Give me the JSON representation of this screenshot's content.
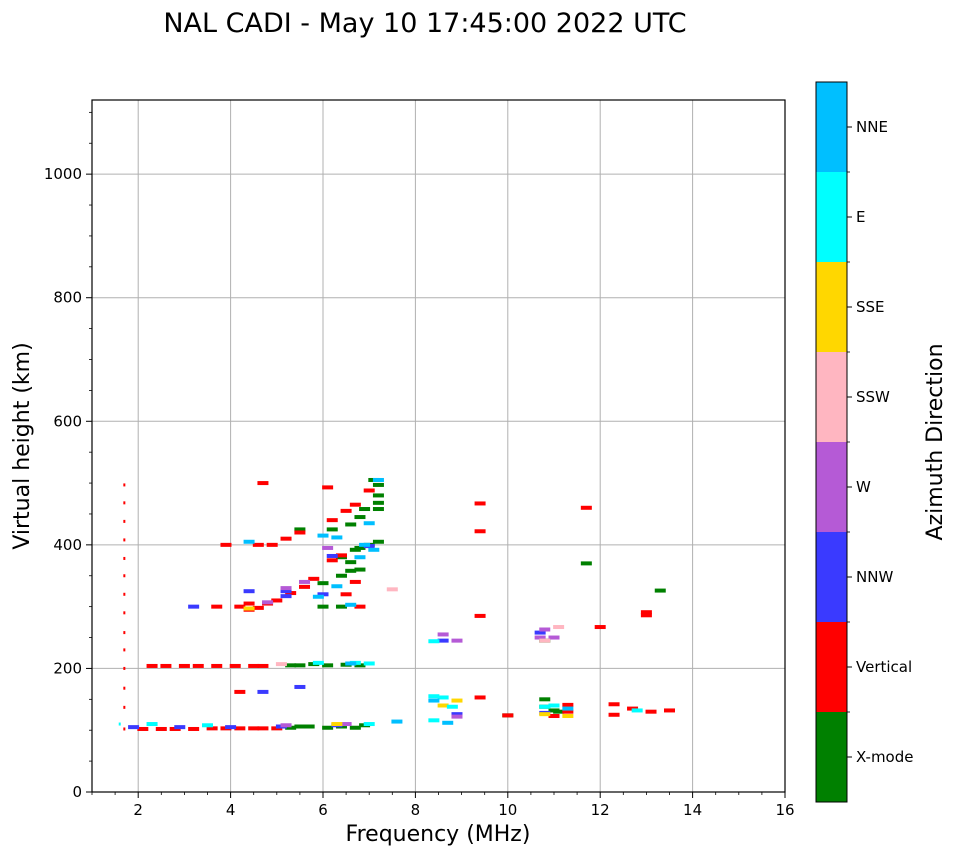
{
  "chart_data": {
    "type": "scatter",
    "title": "NAL CADI - May 10 17:45:00 2022 UTC",
    "xlabel": "Frequency (MHz)",
    "ylabel": "Virtual height (km)",
    "xlim": [
      1,
      16
    ],
    "ylim": [
      0,
      1120
    ],
    "xticks": [
      2,
      4,
      6,
      8,
      10,
      12,
      14,
      16
    ],
    "yticks": [
      0,
      200,
      400,
      600,
      800,
      1000
    ],
    "grid": true,
    "colorbar": {
      "title": "Azimuth Direction",
      "categories": [
        {
          "name": "X-mode",
          "color": "#008000"
        },
        {
          "name": "Vertical",
          "color": "#ff0000"
        },
        {
          "name": "NNW",
          "color": "#3a3aff"
        },
        {
          "name": "W",
          "color": "#b55ad6"
        },
        {
          "name": "SSW",
          "color": "#ffb6c1"
        },
        {
          "name": "SSE",
          "color": "#ffd700"
        },
        {
          "name": "E",
          "color": "#00ffff"
        },
        {
          "name": "NNE",
          "color": "#00bfff"
        }
      ]
    },
    "series": [
      {
        "name": "X-mode",
        "points": [
          [
            5.3,
            104
          ],
          [
            5.5,
            106
          ],
          [
            5.7,
            106
          ],
          [
            6.1,
            104
          ],
          [
            6.4,
            106
          ],
          [
            6.7,
            104
          ],
          [
            6.9,
            108
          ],
          [
            5.3,
            205
          ],
          [
            5.5,
            205
          ],
          [
            5.8,
            207
          ],
          [
            6.1,
            205
          ],
          [
            6.5,
            206
          ],
          [
            6.8,
            205
          ],
          [
            6.0,
            300
          ],
          [
            6.4,
            300
          ],
          [
            6.0,
            338
          ],
          [
            6.4,
            350
          ],
          [
            6.6,
            358
          ],
          [
            6.8,
            360
          ],
          [
            6.6,
            372
          ],
          [
            6.4,
            380
          ],
          [
            6.7,
            392
          ],
          [
            6.8,
            395
          ],
          [
            7.0,
            400
          ],
          [
            7.2,
            405
          ],
          [
            6.2,
            425
          ],
          [
            6.6,
            433
          ],
          [
            6.8,
            445
          ],
          [
            6.9,
            458
          ],
          [
            7.2,
            458
          ],
          [
            7.2,
            468
          ],
          [
            7.2,
            480
          ],
          [
            7.2,
            497
          ],
          [
            7.1,
            505
          ],
          [
            5.5,
            425
          ],
          [
            10.8,
            150
          ],
          [
            10.8,
            138
          ],
          [
            11.0,
            132
          ],
          [
            11.1,
            130
          ],
          [
            10.8,
            245
          ],
          [
            11.7,
            370
          ],
          [
            13.3,
            326
          ],
          [
            10.0,
            124
          ]
        ]
      },
      {
        "name": "Vertical",
        "points": [
          [
            1.7,
            102
          ],
          [
            2.1,
            102
          ],
          [
            2.5,
            102
          ],
          [
            2.8,
            102
          ],
          [
            3.2,
            102
          ],
          [
            3.6,
            103
          ],
          [
            3.9,
            103
          ],
          [
            4.2,
            103
          ],
          [
            4.5,
            103
          ],
          [
            4.7,
            103
          ],
          [
            5.0,
            103
          ],
          [
            2.3,
            204
          ],
          [
            2.6,
            204
          ],
          [
            3.0,
            204
          ],
          [
            3.3,
            204
          ],
          [
            3.7,
            204
          ],
          [
            4.1,
            204
          ],
          [
            4.5,
            204
          ],
          [
            4.7,
            204
          ],
          [
            3.7,
            300
          ],
          [
            4.2,
            300
          ],
          [
            4.4,
            295
          ],
          [
            4.6,
            298
          ],
          [
            4.8,
            305
          ],
          [
            5.0,
            310
          ],
          [
            5.3,
            322
          ],
          [
            5.6,
            332
          ],
          [
            5.8,
            345
          ],
          [
            6.2,
            375
          ],
          [
            6.4,
            383
          ],
          [
            6.7,
            340
          ],
          [
            6.5,
            320
          ],
          [
            6.8,
            300
          ],
          [
            3.9,
            400
          ],
          [
            4.6,
            400
          ],
          [
            4.9,
            400
          ],
          [
            5.2,
            410
          ],
          [
            5.5,
            420
          ],
          [
            6.2,
            440
          ],
          [
            6.5,
            455
          ],
          [
            6.7,
            465
          ],
          [
            7.0,
            488
          ],
          [
            6.1,
            493
          ],
          [
            4.7,
            500
          ],
          [
            4.4,
            305
          ],
          [
            9.4,
            467
          ],
          [
            9.4,
            422
          ],
          [
            9.4,
            285
          ],
          [
            9.4,
            153
          ],
          [
            10.0,
            124
          ],
          [
            11.0,
            123
          ],
          [
            11.3,
            141
          ],
          [
            11.3,
            130
          ],
          [
            12.3,
            142
          ],
          [
            12.3,
            125
          ],
          [
            12.7,
            135
          ],
          [
            13.1,
            130
          ],
          [
            13.5,
            132
          ],
          [
            13.0,
            286
          ],
          [
            13.0,
            291
          ],
          [
            12.0,
            267
          ],
          [
            11.7,
            460
          ],
          [
            11.0,
            123
          ],
          [
            1.7,
            137
          ],
          [
            1.7,
            168
          ],
          [
            1.7,
            200
          ],
          [
            1.7,
            230
          ],
          [
            1.7,
            258
          ],
          [
            1.7,
            290
          ],
          [
            1.7,
            320
          ],
          [
            1.7,
            350
          ],
          [
            1.7,
            378
          ],
          [
            1.7,
            408
          ],
          [
            1.7,
            438
          ],
          [
            1.7,
            468
          ],
          [
            1.7,
            497
          ],
          [
            4.2,
            162
          ]
        ]
      },
      {
        "name": "NNW",
        "points": [
          [
            1.9,
            105
          ],
          [
            2.9,
            105
          ],
          [
            4.0,
            105
          ],
          [
            5.1,
            106
          ],
          [
            3.2,
            300
          ],
          [
            4.4,
            325
          ],
          [
            5.2,
            317
          ],
          [
            6.0,
            320
          ],
          [
            5.5,
            170
          ],
          [
            4.7,
            162
          ],
          [
            5.2,
            325
          ],
          [
            6.2,
            382
          ],
          [
            7.0,
            398
          ],
          [
            8.9,
            126
          ],
          [
            10.8,
            128
          ],
          [
            10.7,
            258
          ],
          [
            6.3,
            108
          ],
          [
            8.6,
            245
          ]
        ]
      },
      {
        "name": "W",
        "points": [
          [
            5.2,
            108
          ],
          [
            5.2,
            330
          ],
          [
            5.6,
            340
          ],
          [
            6.5,
            110
          ],
          [
            8.6,
            255
          ],
          [
            8.9,
            245
          ],
          [
            8.9,
            122
          ],
          [
            10.8,
            263
          ],
          [
            11.0,
            250
          ],
          [
            10.7,
            250
          ],
          [
            6.1,
            395
          ],
          [
            4.8,
            307
          ]
        ]
      },
      {
        "name": "SSW",
        "points": [
          [
            7.5,
            328
          ],
          [
            11.1,
            267
          ],
          [
            5.1,
            207
          ],
          [
            10.8,
            245
          ]
        ]
      },
      {
        "name": "SSE",
        "points": [
          [
            10.8,
            126
          ],
          [
            11.3,
            123
          ],
          [
            8.6,
            140
          ],
          [
            8.9,
            148
          ],
          [
            6.3,
            110
          ],
          [
            4.4,
            297
          ]
        ]
      },
      {
        "name": "E",
        "points": [
          [
            1.6,
            110
          ],
          [
            2.3,
            110
          ],
          [
            3.5,
            108
          ],
          [
            5.9,
            209
          ],
          [
            6.7,
            209
          ],
          [
            7.0,
            208
          ],
          [
            8.4,
            116
          ],
          [
            8.4,
            155
          ],
          [
            8.6,
            153
          ],
          [
            8.8,
            138
          ],
          [
            10.8,
            138
          ],
          [
            11.0,
            140
          ],
          [
            12.8,
            132
          ],
          [
            7.0,
            110
          ],
          [
            8.4,
            244
          ]
        ]
      },
      {
        "name": "NNE",
        "points": [
          [
            4.4,
            405
          ],
          [
            6.0,
            415
          ],
          [
            6.3,
            412
          ],
          [
            7.1,
            392
          ],
          [
            7.2,
            505
          ],
          [
            7.0,
            435
          ],
          [
            6.8,
            380
          ],
          [
            6.3,
            333
          ],
          [
            5.9,
            316
          ],
          [
            6.6,
            303
          ],
          [
            6.6,
            208
          ],
          [
            8.4,
            148
          ],
          [
            8.7,
            112
          ],
          [
            7.6,
            114
          ],
          [
            11.3,
            135
          ],
          [
            6.9,
            400
          ]
        ]
      }
    ]
  }
}
